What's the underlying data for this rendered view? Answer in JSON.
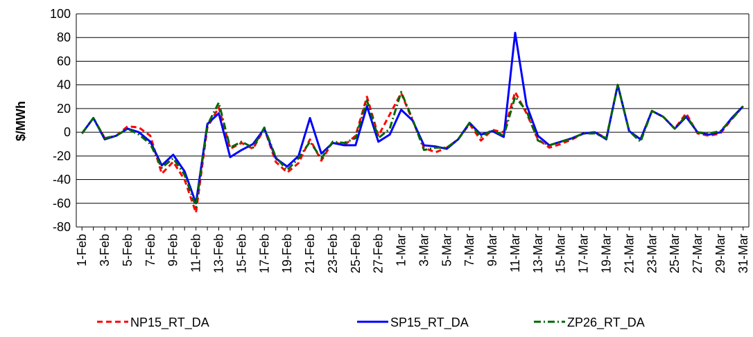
{
  "chart_data": {
    "type": "line",
    "y_label": "$/MWh",
    "categories": [
      "1-Feb",
      null,
      "3-Feb",
      null,
      "5-Feb",
      null,
      "7-Feb",
      null,
      "9-Feb",
      null,
      "11-Feb",
      null,
      "13-Feb",
      null,
      "15-Feb",
      null,
      "17-Feb",
      null,
      "19-Feb",
      null,
      "21-Feb",
      null,
      "23-Feb",
      null,
      "25-Feb",
      null,
      "27-Feb",
      null,
      "1-Mar",
      null,
      "3-Mar",
      null,
      "5-Mar",
      null,
      "7-Mar",
      null,
      "9-Mar",
      null,
      "11-Mar",
      null,
      "13-Mar",
      null,
      "15-Mar",
      null,
      "17-Mar",
      null,
      "19-Mar",
      null,
      "21-Mar",
      null,
      "23-Mar",
      null,
      "25-Mar",
      null,
      "27-Mar",
      null,
      "29-Mar",
      null,
      "31-Mar"
    ],
    "series": [
      {
        "name": "NP15_RT_DA",
        "color": "#ff0000",
        "dash": "8,5",
        "values": [
          -1,
          12,
          -5,
          -3,
          5,
          4,
          -3,
          -35,
          -25,
          -40,
          -68,
          4,
          21,
          -14,
          -9,
          -14,
          3,
          -25,
          -34,
          -26,
          -6,
          -24,
          -8,
          -11,
          -3,
          30,
          -3,
          15,
          33,
          10,
          -13,
          -17,
          -13,
          -6,
          7,
          -7,
          2,
          0,
          34,
          16,
          -6,
          -13,
          -10,
          -6,
          -1,
          0,
          -5,
          40,
          1,
          -6,
          18,
          13,
          3,
          16,
          -1,
          -3,
          -1,
          11,
          22
        ]
      },
      {
        "name": "SP15_RT_DA",
        "color": "#0000ff",
        "dash": null,
        "values": [
          -1,
          12,
          -6,
          -3,
          3,
          0,
          -8,
          -28,
          -19,
          -33,
          -60,
          7,
          16,
          -21,
          -15,
          -10,
          3,
          -22,
          -29,
          -20,
          12,
          -18,
          -9,
          -11,
          -11,
          22,
          -8,
          -2,
          19,
          10,
          -11,
          -12,
          -14,
          -6,
          8,
          -2,
          1,
          -4,
          84,
          23,
          -3,
          -11,
          -8,
          -5,
          -1,
          0,
          -6,
          40,
          1,
          -6,
          18,
          13,
          3,
          13,
          0,
          -2,
          0,
          12,
          22
        ]
      },
      {
        "name": "ZP26_RT_DA",
        "color": "#006600",
        "dash": "10,4,2,4",
        "values": [
          -1,
          12,
          -5,
          -3,
          3,
          -2,
          -10,
          -30,
          -22,
          -36,
          -63,
          6,
          25,
          -13,
          -8,
          -13,
          4,
          -21,
          -32,
          -22,
          -8,
          -22,
          -8,
          -9,
          -5,
          27,
          -5,
          3,
          34,
          11,
          -15,
          -13,
          -13,
          -6,
          8,
          -4,
          2,
          -3,
          30,
          18,
          -7,
          -11,
          -8,
          -5,
          -1,
          -1,
          -5,
          40,
          1,
          -8,
          18,
          13,
          3,
          14,
          0,
          -1,
          1,
          11,
          22
        ]
      }
    ],
    "ylim": [
      -80,
      100
    ],
    "yticks": [
      -80,
      -60,
      -40,
      -20,
      0,
      20,
      40,
      60,
      80,
      100
    ],
    "grid": true
  }
}
